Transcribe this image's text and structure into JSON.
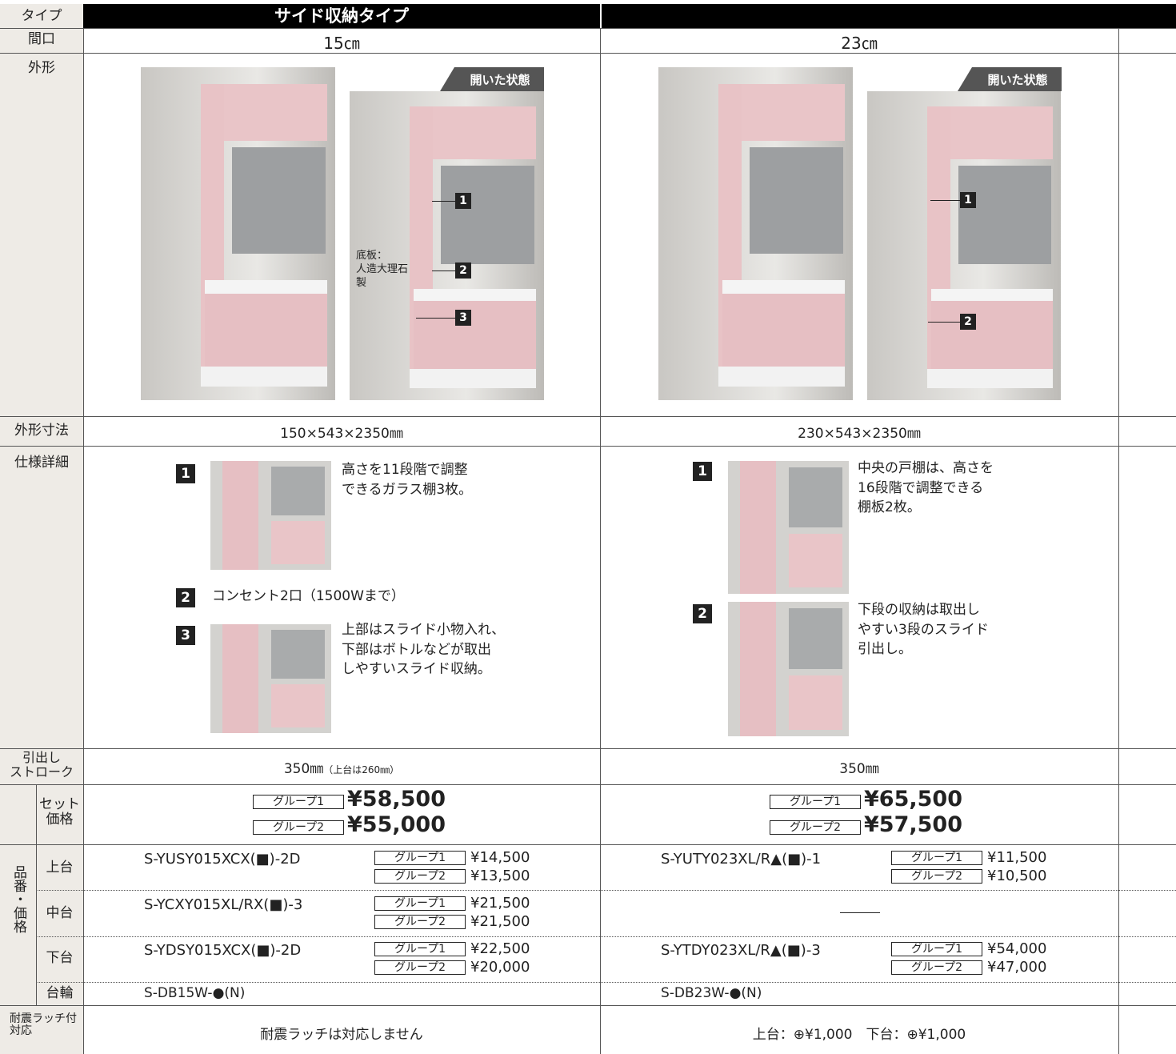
{
  "header": {
    "label": "タイプ",
    "title": "サイド収納タイプ"
  },
  "row_labels": {
    "width": "間口",
    "shape": "外形",
    "dimensions": "外形寸法",
    "details": "仕様詳細",
    "stroke": "引出し\nストローク",
    "code_price": "品番・価格",
    "set_price": "セット\n価格",
    "upper": "上台",
    "middle": "中台",
    "lower": "下台",
    "plinth": "台輪",
    "latch": "耐震ラッチ付\n対応"
  },
  "columns": [
    {
      "width": "15㎝",
      "open_label": "開いた状態",
      "photo_callouts": [
        "1",
        "2",
        "3"
      ],
      "base_note": "底板：\n人造大理石\n製",
      "dimensions": "150×543×2350㎜",
      "details": [
        {
          "number": "1",
          "text": "高さを11段階で調整\nできるガラス棚3枚。"
        },
        {
          "number": "2",
          "text": "コンセント2口（1500Wまで）"
        },
        {
          "number": "3",
          "text": "上部はスライド小物入れ、\n下部はボトルなどが取出\nしやすいスライド収納。"
        }
      ],
      "stroke": "350㎜",
      "stroke_note": "（上台は260㎜）",
      "set_prices": [
        {
          "group": "グループ1",
          "price": "¥58,500"
        },
        {
          "group": "グループ2",
          "price": "¥55,000"
        }
      ],
      "upper": {
        "code": "S-YUSY015XCX(■)-2D",
        "prices": [
          {
            "group": "グループ1",
            "price": "¥14,500"
          },
          {
            "group": "グループ2",
            "price": "¥13,500"
          }
        ]
      },
      "middle": {
        "code": "S-YCXY015XL/RX(■)-3",
        "prices": [
          {
            "group": "グループ1",
            "price": "¥21,500"
          },
          {
            "group": "グループ2",
            "price": "¥21,500"
          }
        ]
      },
      "lower": {
        "code": "S-YDSY015XCX(■)-2D",
        "prices": [
          {
            "group": "グループ1",
            "price": "¥22,500"
          },
          {
            "group": "グループ2",
            "price": "¥20,000"
          }
        ]
      },
      "plinth": "S-DB15W-●(N)",
      "latch": "耐震ラッチは対応しません"
    },
    {
      "width": "23㎝",
      "open_label": "開いた状態",
      "photo_callouts": [
        "1",
        "2"
      ],
      "dimensions": "230×543×2350㎜",
      "details": [
        {
          "number": "1",
          "text": "中央の戸棚は、高さを\n16段階で調整できる\n棚板2枚。"
        },
        {
          "number": "2",
          "text": "下段の収納は取出し\nやすい3段のスライド\n引出し。"
        }
      ],
      "stroke": "350㎜",
      "set_prices": [
        {
          "group": "グループ1",
          "price": "¥65,500"
        },
        {
          "group": "グループ2",
          "price": "¥57,500"
        }
      ],
      "upper": {
        "code": "S-YUTY023XL/R▲(■)-1",
        "prices": [
          {
            "group": "グループ1",
            "price": "¥11,500"
          },
          {
            "group": "グループ2",
            "price": "¥10,500"
          }
        ]
      },
      "lower": {
        "code": "S-YTDY023XL/R▲(■)-3",
        "prices": [
          {
            "group": "グループ1",
            "price": "¥54,000"
          },
          {
            "group": "グループ2",
            "price": "¥47,000"
          }
        ]
      },
      "plinth": "S-DB23W-●(N)",
      "latch": "上台：⊕¥1,000　下台：⊕¥1,000"
    }
  ]
}
